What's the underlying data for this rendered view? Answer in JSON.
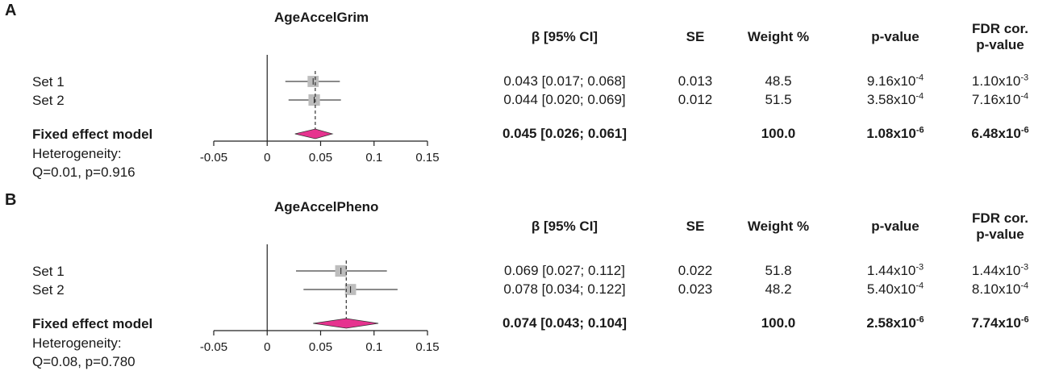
{
  "panels": [
    {
      "letter": "A",
      "title": "AgeAccelGrim",
      "columns": {
        "ci": "β [95% CI]",
        "se": "SE",
        "weight": "Weight %",
        "p": "p-value",
        "fdr1": "FDR cor.",
        "fdr2": "p-value"
      },
      "rows": [
        {
          "label": "Set 1",
          "ci": "0.043 [0.017; 0.068]",
          "se": "0.013",
          "weight": "48.5",
          "p_base": "9.16x10",
          "p_exp": "-4",
          "fdr_base": "1.10x10",
          "fdr_exp": "-3"
        },
        {
          "label": "Set 2",
          "ci": "0.044 [0.020; 0.069]",
          "se": "0.012",
          "weight": "51.5",
          "p_base": "3.58x10",
          "p_exp": "-4",
          "fdr_base": "7.16x10",
          "fdr_exp": "-4"
        }
      ],
      "pooled": {
        "label": "Fixed effect model",
        "ci": "0.045 [0.026; 0.061]",
        "se": "",
        "weight": "100.0",
        "p_base": "1.08x10",
        "p_exp": "-6",
        "fdr_base": "6.48x10",
        "fdr_exp": "-6"
      },
      "heterogeneity": {
        "line1": "Heterogeneity:",
        "line2": "Q=0.01, p=0.916"
      }
    },
    {
      "letter": "B",
      "title": "AgeAccelPheno",
      "columns": {
        "ci": "β [95% CI]",
        "se": "SE",
        "weight": "Weight %",
        "p": "p-value",
        "fdr1": "FDR cor.",
        "fdr2": "p-value"
      },
      "rows": [
        {
          "label": "Set 1",
          "ci": "0.069 [0.027; 0.112]",
          "se": "0.022",
          "weight": "51.8",
          "p_base": "1.44x10",
          "p_exp": "-3",
          "fdr_base": "1.44x10",
          "fdr_exp": "-3"
        },
        {
          "label": "Set 2",
          "ci": "0.078 [0.034; 0.122]",
          "se": "0.023",
          "weight": "48.2",
          "p_base": "5.40x10",
          "p_exp": "-4",
          "fdr_base": "8.10x10",
          "fdr_exp": "-4"
        }
      ],
      "pooled": {
        "label": "Fixed effect model",
        "ci": "0.074 [0.043; 0.104]",
        "se": "",
        "weight": "100.0",
        "p_base": "2.58x10",
        "p_exp": "-6",
        "fdr_base": "7.74x10",
        "fdr_exp": "-6"
      },
      "heterogeneity": {
        "line1": "Heterogeneity:",
        "line2": "Q=0.08, p=0.780"
      }
    }
  ],
  "chart_data": [
    {
      "type": "forest",
      "title": "AgeAccelGrim",
      "categories": [
        "Set 1",
        "Set 2",
        "Fixed effect model"
      ],
      "estimates": [
        0.043,
        0.044,
        0.045
      ],
      "ci_lower": [
        0.017,
        0.02,
        0.026
      ],
      "ci_upper": [
        0.068,
        0.069,
        0.061
      ],
      "weights": [
        48.5,
        51.5,
        100.0
      ],
      "xlim": [
        -0.05,
        0.15
      ],
      "xticks": [
        "-0.05",
        "0",
        "0.05",
        "0.1",
        "0.15"
      ],
      "colors": {
        "box": "#bdbdbd",
        "diamond": "#e6338f",
        "line": "#444444"
      }
    },
    {
      "type": "forest",
      "title": "AgeAccelPheno",
      "categories": [
        "Set 1",
        "Set 2",
        "Fixed effect model"
      ],
      "estimates": [
        0.069,
        0.078,
        0.074
      ],
      "ci_lower": [
        0.027,
        0.034,
        0.043
      ],
      "ci_upper": [
        0.112,
        0.122,
        0.104
      ],
      "weights": [
        51.8,
        48.2,
        100.0
      ],
      "xlim": [
        -0.05,
        0.15
      ],
      "xticks": [
        "-0.05",
        "0",
        "0.05",
        "0.1",
        "0.15"
      ],
      "colors": {
        "box": "#bdbdbd",
        "diamond": "#e6338f",
        "line": "#444444"
      }
    }
  ]
}
